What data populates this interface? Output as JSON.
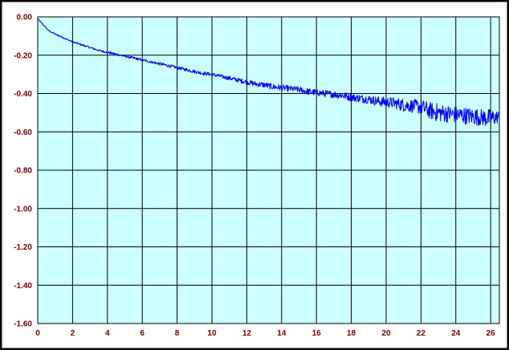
{
  "chart_data": {
    "type": "line",
    "title": "",
    "xlabel": "",
    "ylabel": "",
    "xlim": [
      0,
      26.5
    ],
    "ylim": [
      -1.6,
      0.0
    ],
    "x_ticks": [
      "0",
      "2",
      "4",
      "6",
      "8",
      "10",
      "12",
      "14",
      "16",
      "18",
      "20",
      "22",
      "24",
      "26"
    ],
    "y_ticks": [
      "0.00",
      "-0.20",
      "-0.40",
      "-0.60",
      "-0.80",
      "-1.00",
      "-1.20",
      "-1.40",
      "-1.60"
    ],
    "grid": true,
    "legend": "none",
    "colors": {
      "plot_background": "#ccffff",
      "grid": "#000000",
      "series": "#0000ff",
      "x_tick_label": "#800000",
      "y_tick_label": "#800000"
    },
    "series": [
      {
        "x": [
          0.0,
          0.3,
          0.6,
          1.0,
          1.5,
          2.0,
          2.5,
          3.0,
          3.5,
          4.0,
          4.5,
          5.0,
          5.5,
          6.0,
          6.5,
          7.0,
          7.5,
          8.0,
          8.5,
          9.0,
          9.5,
          10.0,
          10.5,
          11.0,
          11.5,
          12.0,
          12.5,
          13.0,
          13.5,
          14.0,
          14.5,
          15.0,
          15.5,
          16.0,
          16.5,
          17.0,
          17.5,
          18.0,
          18.5,
          19.0,
          19.5,
          20.0,
          20.5,
          21.0,
          21.5,
          22.0,
          22.5,
          23.0,
          23.5,
          24.0,
          24.5,
          25.0,
          25.5,
          26.0,
          26.5
        ],
        "values": [
          -0.01,
          -0.04,
          -0.07,
          -0.09,
          -0.11,
          -0.13,
          -0.145,
          -0.16,
          -0.175,
          -0.185,
          -0.195,
          -0.205,
          -0.215,
          -0.225,
          -0.235,
          -0.245,
          -0.255,
          -0.265,
          -0.275,
          -0.285,
          -0.295,
          -0.3,
          -0.31,
          -0.32,
          -0.33,
          -0.34,
          -0.35,
          -0.355,
          -0.365,
          -0.37,
          -0.375,
          -0.38,
          -0.39,
          -0.395,
          -0.4,
          -0.405,
          -0.41,
          -0.42,
          -0.425,
          -0.43,
          -0.44,
          -0.445,
          -0.45,
          -0.46,
          -0.465,
          -0.47,
          -0.49,
          -0.5,
          -0.505,
          -0.51,
          -0.515,
          -0.52,
          -0.525,
          -0.53,
          -0.52
        ],
        "noise_amplitude": [
          0.003,
          0.003,
          0.003,
          0.004,
          0.004,
          0.004,
          0.005,
          0.005,
          0.005,
          0.006,
          0.006,
          0.006,
          0.007,
          0.007,
          0.007,
          0.008,
          0.008,
          0.008,
          0.009,
          0.009,
          0.009,
          0.01,
          0.01,
          0.011,
          0.012,
          0.013,
          0.014,
          0.015,
          0.016,
          0.016,
          0.016,
          0.017,
          0.018,
          0.018,
          0.018,
          0.019,
          0.02,
          0.021,
          0.022,
          0.023,
          0.025,
          0.028,
          0.03,
          0.035,
          0.035,
          0.04,
          0.045,
          0.05,
          0.045,
          0.045,
          0.045,
          0.045,
          0.045,
          0.05,
          0.03
        ]
      }
    ]
  }
}
